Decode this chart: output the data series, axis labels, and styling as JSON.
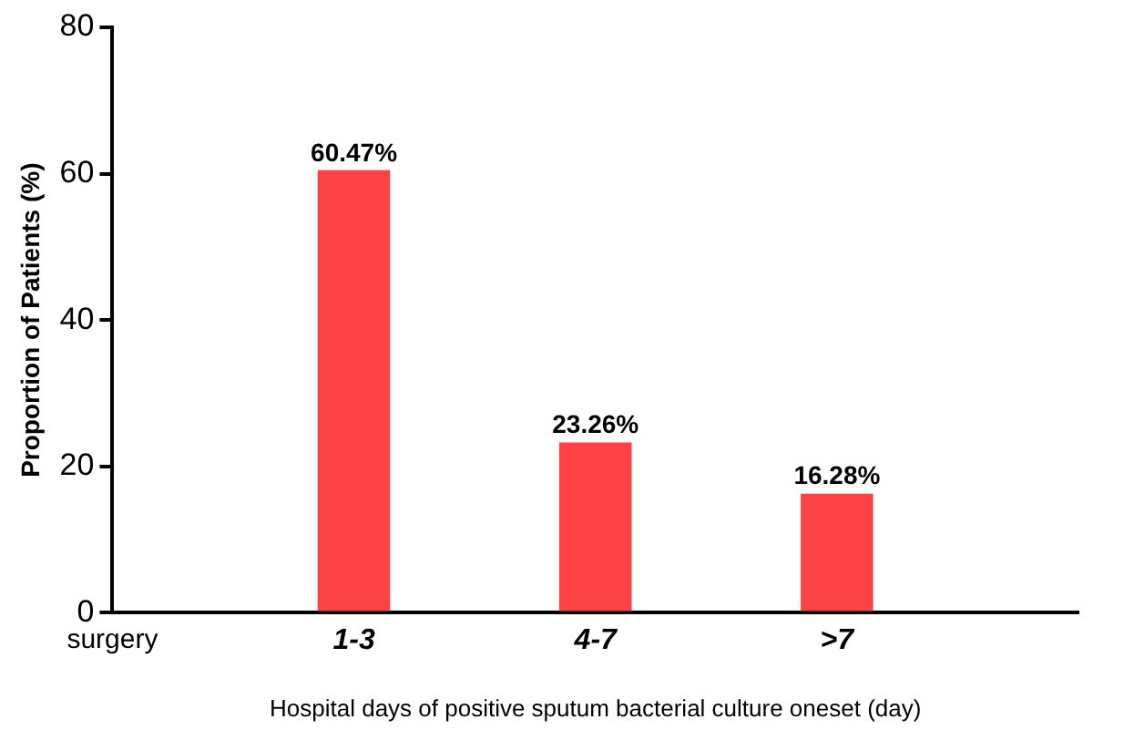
{
  "chart_data": {
    "type": "bar",
    "xlabel": "Hospital days of positive sputum bacterial culture oneset (day)",
    "ylabel": "Proportion of Patients (%)",
    "categories": [
      "surgery",
      "1-3",
      "4-7",
      ">7",
      null
    ],
    "values": [
      null,
      60.47,
      23.26,
      16.28,
      null
    ],
    "value_labels": [
      null,
      "60.47%",
      "23.26%",
      "16.28%",
      null
    ],
    "color": "#fc4245",
    "ylim": [
      0,
      80
    ],
    "yticks": [
      0,
      20,
      40,
      60,
      80
    ],
    "grid": false,
    "legend": false
  }
}
